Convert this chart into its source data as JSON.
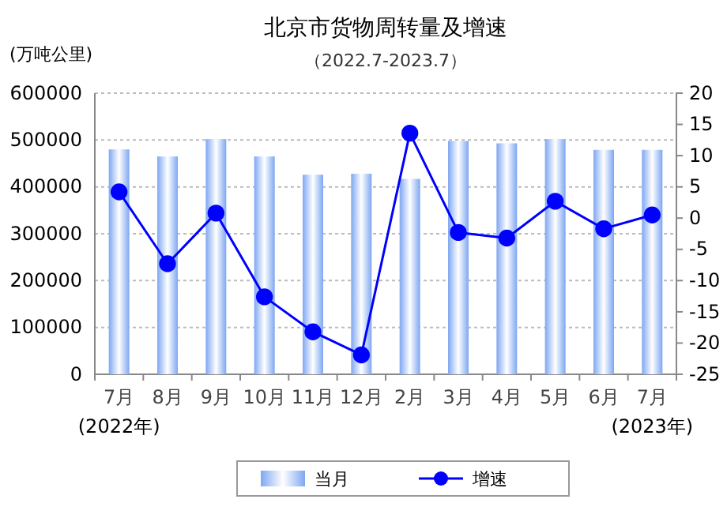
{
  "chart_data": {
    "type": "bar",
    "title": "北京市货物周转量及增速",
    "subtitle": "（2022.7-2023.7）",
    "ylabel": "(万吨公里)",
    "categories": [
      "7月",
      "8月",
      "9月",
      "10月",
      "11月",
      "12月",
      "2月",
      "3月",
      "4月",
      "5月",
      "6月",
      "7月"
    ],
    "series": [
      {
        "name": "当月",
        "color": "#7ea7f2",
        "values": [
          480000,
          465000,
          502000,
          465000,
          426000,
          428000,
          417000,
          498000,
          493000,
          502000,
          479000,
          479000
        ]
      },
      {
        "name": "增速",
        "type": "line",
        "axis": "y2",
        "color": "#0000ff",
        "values": [
          4.2,
          -7.3,
          0.8,
          -12.6,
          -18.2,
          -21.9,
          13.6,
          -2.3,
          -3.2,
          2.7,
          -1.7,
          0.5
        ]
      }
    ],
    "ylim": [
      0,
      600000
    ],
    "yticks": [
      0,
      100000,
      200000,
      300000,
      400000,
      500000,
      600000
    ],
    "y2lim": [
      -25,
      20
    ],
    "y2ticks": [
      -25,
      -20,
      -15,
      -10,
      -5,
      0,
      5,
      10,
      15,
      20
    ],
    "annotations": [
      "(2022年)",
      "(2023年)"
    ],
    "grid": "y",
    "legend": "bottom",
    "marker": "circle",
    "line_style": "solid"
  }
}
